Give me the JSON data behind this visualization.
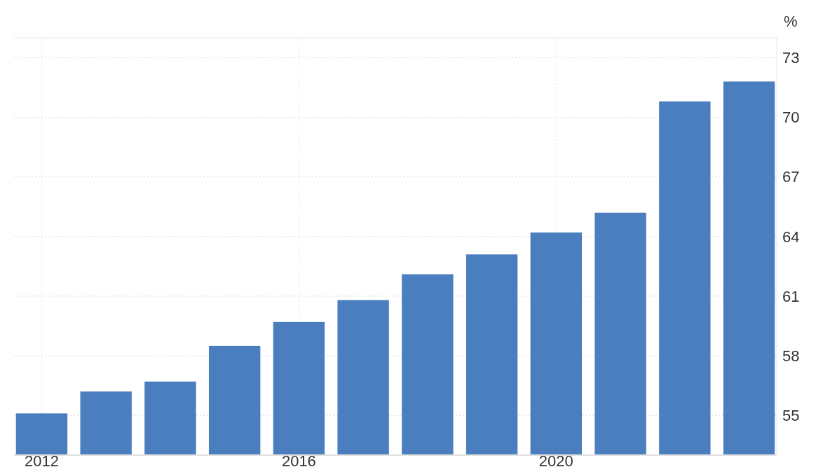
{
  "chart_data": {
    "type": "bar",
    "ylabel": "%",
    "x": [
      2012,
      2013,
      2014,
      2015,
      2016,
      2017,
      2018,
      2019,
      2020,
      2021,
      2022,
      2023
    ],
    "values": [
      55.1,
      56.2,
      56.7,
      58.5,
      59.7,
      60.8,
      62.1,
      63.1,
      64.2,
      65.2,
      70.8,
      71.8
    ],
    "color": "#4a7ebf",
    "xlim": [
      2011.57,
      2023.43
    ],
    "xticks": [
      2012,
      2016,
      2020
    ],
    "ylim": [
      53,
      74
    ],
    "yticks": [
      55,
      58,
      61,
      64,
      67,
      70,
      73
    ],
    "grid": true
  }
}
